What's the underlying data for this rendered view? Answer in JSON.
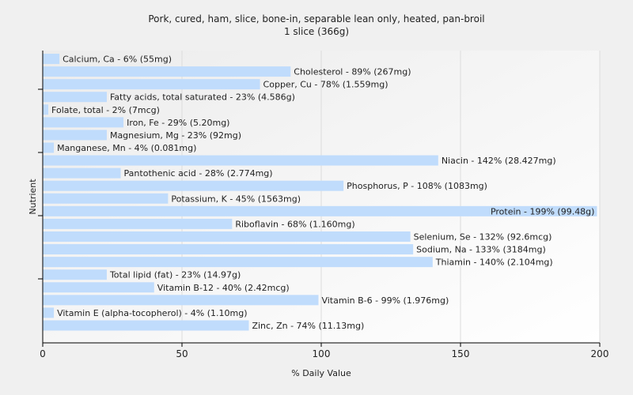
{
  "chart_data": {
    "type": "bar",
    "orientation": "horizontal",
    "title": "Pork, cured, ham, slice, bone-in, separable lean only, heated, pan-broil",
    "subtitle": "1 slice (366g)",
    "xlabel": "% Daily Value",
    "ylabel": "Nutrient",
    "xlim": [
      0,
      200
    ],
    "xticks": [
      "0",
      "50",
      "100",
      "150",
      "200"
    ],
    "grid": true,
    "bar_color": "#c0dcfc",
    "categories": [
      "Calcium, Ca",
      "Cholesterol",
      "Copper, Cu",
      "Fatty acids, total saturated",
      "Folate, total",
      "Iron, Fe",
      "Magnesium, Mg",
      "Manganese, Mn",
      "Niacin",
      "Pantothenic acid",
      "Phosphorus, P",
      "Potassium, K",
      "Protein",
      "Riboflavin",
      "Selenium, Se",
      "Sodium, Na",
      "Thiamin",
      "Total lipid (fat)",
      "Vitamin B-12",
      "Vitamin B-6",
      "Vitamin E (alpha-tocopherol)",
      "Zinc, Zn"
    ],
    "values": [
      6,
      89,
      78,
      23,
      2,
      29,
      23,
      4,
      142,
      28,
      108,
      45,
      199,
      68,
      132,
      133,
      140,
      23,
      40,
      99,
      4,
      74
    ],
    "labels": [
      "Calcium, Ca - 6% (55mg)",
      "Cholesterol - 89% (267mg)",
      "Copper, Cu - 78% (1.559mg)",
      "Fatty acids, total saturated - 23% (4.586g)",
      "Folate, total - 2% (7mcg)",
      "Iron, Fe - 29% (5.20mg)",
      "Magnesium, Mg - 23% (92mg)",
      "Manganese, Mn - 4% (0.081mg)",
      "Niacin - 142% (28.427mg)",
      "Pantothenic acid - 28% (2.774mg)",
      "Phosphorus, P - 108% (1083mg)",
      "Potassium, K - 45% (1563mg)",
      "Protein - 199% (99.48g)",
      "Riboflavin - 68% (1.160mg)",
      "Selenium, Se - 132% (92.6mcg)",
      "Sodium, Na - 133% (3184mg)",
      "Thiamin - 140% (2.104mg)",
      "Total lipid (fat) - 23% (14.97g)",
      "Vitamin B-12 - 40% (2.42mcg)",
      "Vitamin B-6 - 99% (1.976mg)",
      "Vitamin E (alpha-tocopherol) - 4% (1.10mg)",
      "Zinc, Zn - 74% (11.13mg)"
    ]
  }
}
